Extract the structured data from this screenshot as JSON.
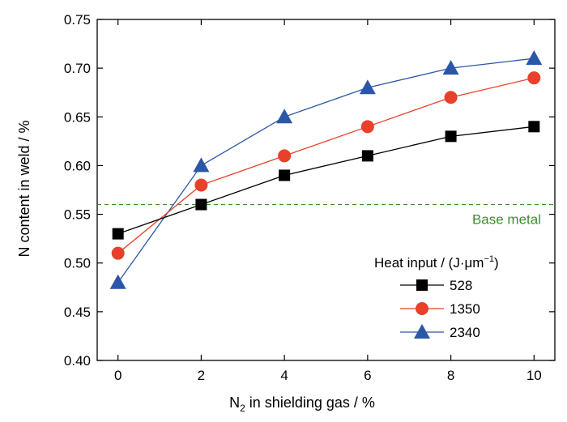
{
  "chart_data": {
    "type": "line",
    "xlabel": {
      "prefix": "N",
      "sub": "2",
      "suffix": " in shielding gas / %"
    },
    "ylabel": "N content in weld / %",
    "xlim": [
      -0.5,
      10.5
    ],
    "ylim": [
      0.4,
      0.75
    ],
    "xticks": [
      0,
      2,
      4,
      6,
      8,
      10
    ],
    "yticks": [
      0.4,
      0.45,
      0.5,
      0.55,
      0.6,
      0.65,
      0.7,
      0.75
    ],
    "ytick_labels": [
      "0.40",
      "0.45",
      "0.50",
      "0.55",
      "0.60",
      "0.65",
      "0.70",
      "0.75"
    ],
    "x": [
      0,
      2,
      4,
      6,
      8,
      10
    ],
    "series": [
      {
        "name": "528",
        "values": [
          0.53,
          0.56,
          0.59,
          0.61,
          0.63,
          0.64
        ],
        "color": "#000000",
        "line_color": "#000000",
        "marker": "square"
      },
      {
        "name": "1350",
        "values": [
          0.51,
          0.58,
          0.61,
          0.64,
          0.67,
          0.69
        ],
        "color": "#e8402a",
        "line_color": "#e8402a",
        "marker": "circle"
      },
      {
        "name": "2340",
        "values": [
          0.48,
          0.6,
          0.65,
          0.68,
          0.7,
          0.71
        ],
        "color": "#2c56a8",
        "line_color": "#2c56a8",
        "marker": "triangle"
      }
    ],
    "reference_line": {
      "label": "Base metal",
      "y": 0.56,
      "color": "#3d8f2c",
      "style": "dashed"
    },
    "legend": {
      "title_prefix": "Heat input / (J·μm",
      "title_sup": "−1",
      "title_suffix": ")",
      "placement": "bottom-right"
    },
    "grid": false
  }
}
